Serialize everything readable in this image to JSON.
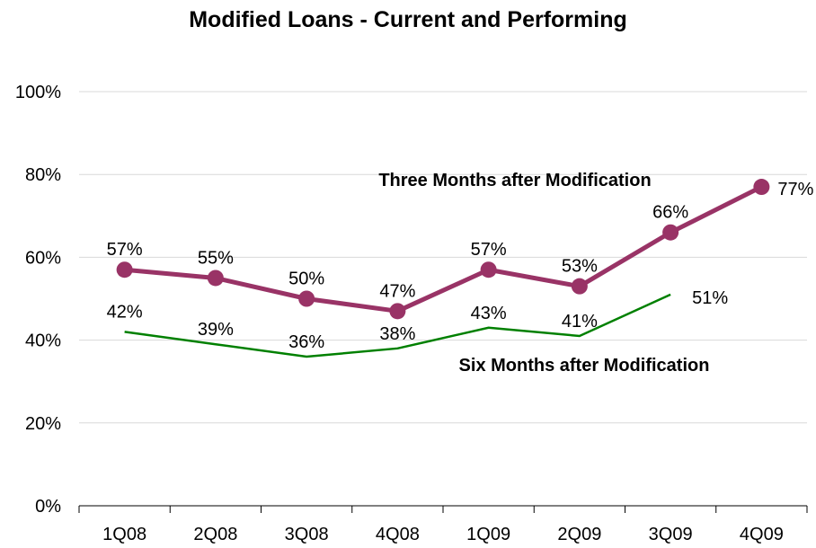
{
  "chart_data": {
    "type": "line",
    "title": "Modified Loans - Current and Performing",
    "categories": [
      "1Q08",
      "2Q08",
      "3Q08",
      "4Q08",
      "1Q09",
      "2Q09",
      "3Q09",
      "4Q09"
    ],
    "ylim": [
      0,
      100
    ],
    "yticks": [
      0,
      20,
      40,
      60,
      80,
      100
    ],
    "ytick_labels": [
      "0%",
      "20%",
      "40%",
      "60%",
      "80%",
      "100%"
    ],
    "grid": true,
    "legend": "none (series labeled directly on chart)",
    "series": [
      {
        "name": "Three Months after Modification",
        "values": [
          57,
          55,
          50,
          47,
          57,
          53,
          66,
          77
        ],
        "labels": [
          "57%",
          "55%",
          "50%",
          "47%",
          "57%",
          "53%",
          "66%",
          "77%"
        ],
        "color": "#993366",
        "markers": true
      },
      {
        "name": "Six Months after Modification",
        "values": [
          42,
          39,
          36,
          38,
          43,
          41,
          51,
          null
        ],
        "labels": [
          "42%",
          "39%",
          "36%",
          "38%",
          "43%",
          "41%",
          "51%",
          null
        ],
        "color": "#008000",
        "markers": false
      }
    ]
  }
}
